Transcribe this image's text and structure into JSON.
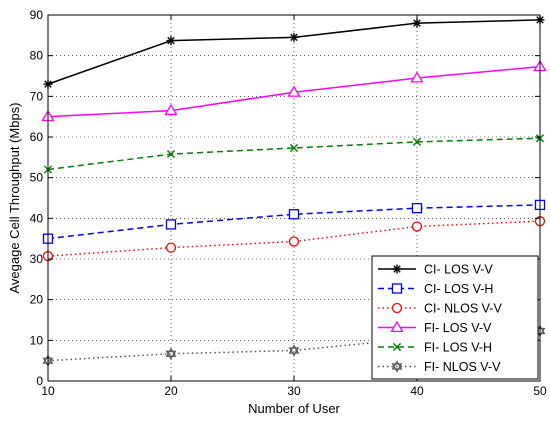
{
  "chart_data": {
    "type": "line",
    "title": "",
    "xlabel": "Number of User",
    "ylabel": "Avegage Cell Throughput (Mbps)",
    "x": [
      10,
      20,
      30,
      40,
      50
    ],
    "xlim": [
      10,
      50
    ],
    "ylim": [
      0,
      90
    ],
    "xticks": [
      "10",
      "20",
      "30",
      "40",
      "50"
    ],
    "yticks": [
      "0",
      "10",
      "20",
      "30",
      "40",
      "50",
      "60",
      "70",
      "80",
      "90"
    ],
    "grid": "on, dotted",
    "legend_position": "bottom-right",
    "series": [
      {
        "name": "CI- LOS V-V",
        "values": [
          73,
          83.7,
          84.5,
          88,
          88.8
        ],
        "color": "#000000",
        "dash": "solid",
        "marker": "asterisk"
      },
      {
        "name": "CI- LOS V-H",
        "values": [
          35,
          38.5,
          41,
          42.5,
          43.3
        ],
        "color": "#0000ff",
        "dash": "dashed",
        "marker": "square"
      },
      {
        "name": "CI- NLOS V-V",
        "values": [
          30.7,
          32.8,
          34.3,
          38,
          39.3
        ],
        "color": "#ff0000",
        "dash": "dotted",
        "marker": "circle"
      },
      {
        "name": "FI- LOS V-V",
        "values": [
          65,
          66.5,
          71,
          74.5,
          77.3
        ],
        "color": "#ff00ff",
        "dash": "solid",
        "marker": "triangle"
      },
      {
        "name": "FI- LOS V-H",
        "values": [
          52,
          55.8,
          57.3,
          58.8,
          59.7
        ],
        "color": "#008000",
        "dash": "dashed",
        "marker": "x"
      },
      {
        "name": "FI- NLOS V-V",
        "values": [
          5,
          6.7,
          7.5,
          10.5,
          12.3
        ],
        "color": "#555555",
        "dash": "dotted",
        "marker": "hexagram"
      }
    ]
  }
}
